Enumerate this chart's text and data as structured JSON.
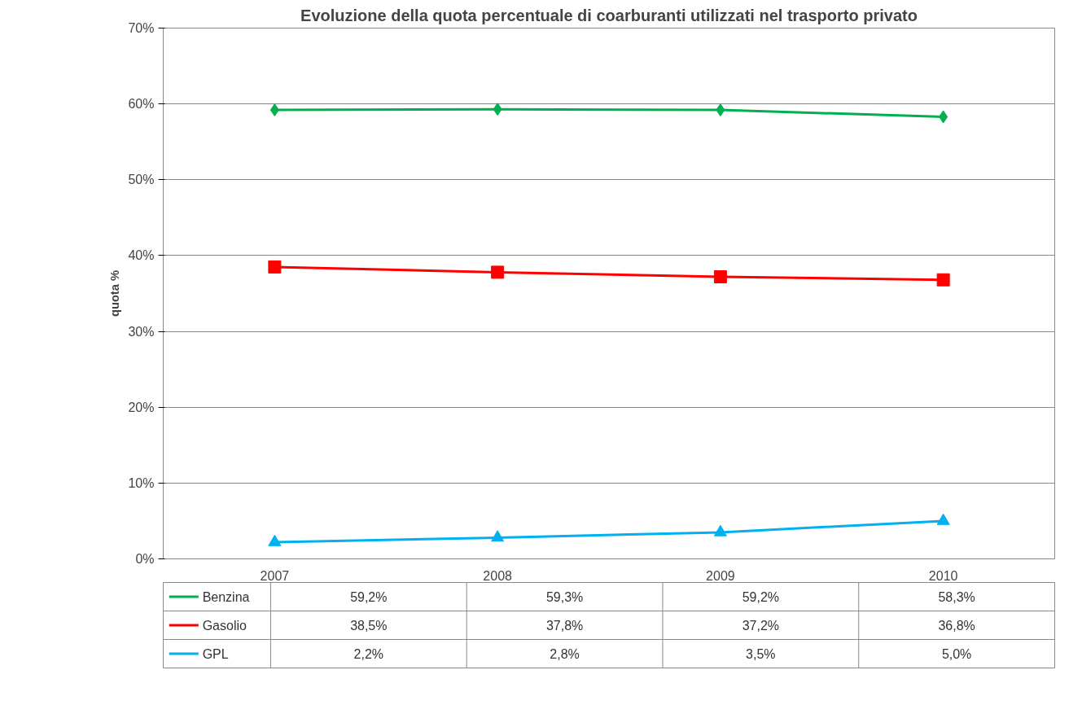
{
  "chart_data": {
    "type": "line",
    "title": "Evoluzione della quota percentuale di coarburanti utilizzati nel trasporto privato",
    "ylabel": "quota %",
    "categories": [
      "2007",
      "2008",
      "2009",
      "2010"
    ],
    "series": [
      {
        "name": "Benzina",
        "color": "#00b050",
        "marker": "diamond",
        "values": [
          59.2,
          59.3,
          59.2,
          58.3
        ],
        "value_labels": [
          "59,2%",
          "59,3%",
          "59,2%",
          "58,3%"
        ]
      },
      {
        "name": "Gasolio",
        "color": "#ff0000",
        "marker": "square",
        "values": [
          38.5,
          37.8,
          37.2,
          36.8
        ],
        "value_labels": [
          "38,5%",
          "37,8%",
          "37,2%",
          "36,8%"
        ]
      },
      {
        "name": "GPL",
        "color": "#00b0f0",
        "marker": "triangle",
        "values": [
          2.2,
          2.8,
          3.5,
          5.0
        ],
        "value_labels": [
          "2,2%",
          "2,8%",
          "3,5%",
          "5,0%"
        ]
      }
    ],
    "ylim": [
      0,
      70
    ],
    "yticks": [
      {
        "value": 0,
        "label": "0%"
      },
      {
        "value": 10,
        "label": "10%"
      },
      {
        "value": 20,
        "label": "20%"
      },
      {
        "value": 30,
        "label": "30%"
      },
      {
        "value": 40,
        "label": "40%"
      },
      {
        "value": 50,
        "label": "50%"
      },
      {
        "value": 60,
        "label": "60%"
      },
      {
        "value": 70,
        "label": "70%"
      }
    ],
    "grid": "y",
    "legend": "bottom",
    "line_style": "solid"
  }
}
